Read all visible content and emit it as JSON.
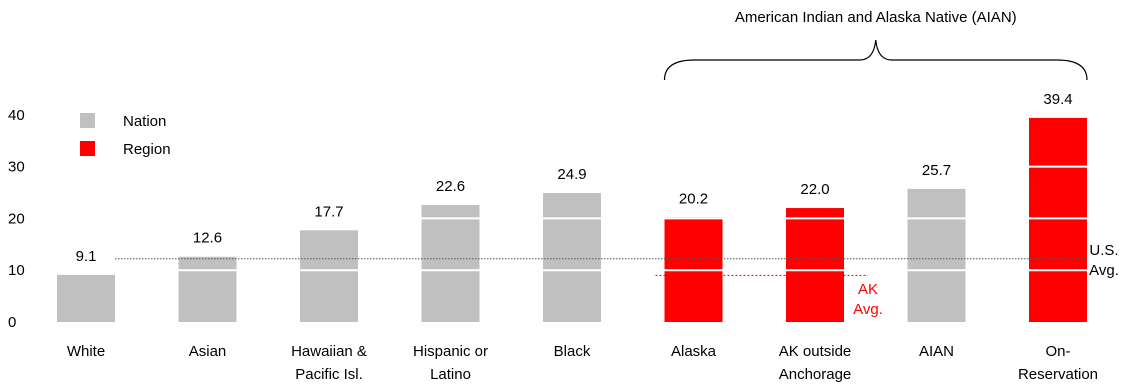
{
  "chart_data": {
    "type": "bar",
    "categories": [
      [
        "White"
      ],
      [
        "Asian"
      ],
      [
        "Hawaiian &",
        "Pacific Isl."
      ],
      [
        "Hispanic or",
        "Latino"
      ],
      [
        "Black"
      ],
      [
        "Alaska"
      ],
      [
        "AK outside",
        "Anchorage"
      ],
      [
        "AIAN"
      ],
      [
        "On-",
        "Reservation"
      ]
    ],
    "values": [
      9.1,
      12.6,
      17.7,
      22.6,
      24.9,
      20.2,
      22.0,
      25.7,
      39.4
    ],
    "value_labels": [
      "9.1",
      "12.6",
      "17.7",
      "22.6",
      "24.9",
      "20.2",
      "22.0",
      "25.7",
      "39.4"
    ],
    "group": [
      "Nation",
      "Nation",
      "Nation",
      "Nation",
      "Nation",
      "Region",
      "Region",
      "Nation",
      "Region"
    ],
    "y_ticks": [
      0,
      10,
      20,
      30,
      40
    ],
    "ylim": [
      0,
      42
    ],
    "grid": false,
    "colors": {
      "Nation": "#c0c0c0",
      "Region": "#ff0000"
    },
    "legend": {
      "position": "top-left",
      "items": [
        {
          "label": "Nation",
          "color": "#c0c0c0"
        },
        {
          "label": "Region",
          "color": "#ff0000"
        }
      ]
    },
    "reference_lines": [
      {
        "value": 12.2,
        "label_lines": [
          "U.S.",
          "Avg."
        ],
        "color": "#555555",
        "span": "all"
      },
      {
        "value": 9.0,
        "label_lines": [
          "AK",
          "Avg."
        ],
        "color": "#ff0000",
        "span": "Alaska-AK outside Anchorage"
      }
    ],
    "bracket_label": "American Indian and Alaska Native (AIAN)",
    "bracket_span": [
      "Alaska",
      "On-Reservation"
    ]
  }
}
